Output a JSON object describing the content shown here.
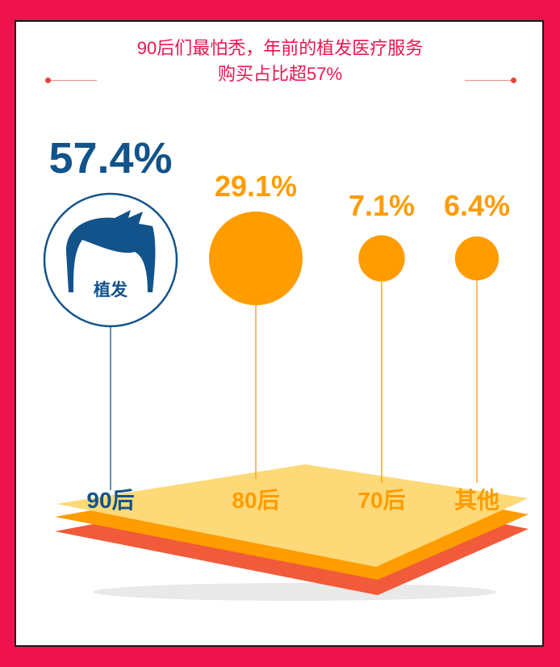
{
  "title_line1": "90后们最怕秃，年前的植发医疗服务",
  "title_line2": "购买占比超57%",
  "icon_label": "植发",
  "colors": {
    "border": "#f0124c",
    "title": "#e8174f",
    "primary": "#12538b",
    "accent": "#ff9c00",
    "layer_top": "#fdd978",
    "layer_mid": "#ff9c00",
    "layer_bottom": "#f15a3a"
  },
  "icon": "hair-icon",
  "chart_data": {
    "type": "bubble",
    "categories": [
      "90后",
      "80后",
      "70后",
      "其他"
    ],
    "values": [
      57.4,
      29.1,
      7.1,
      6.4
    ],
    "value_labels": [
      "57.4%",
      "29.1%",
      "7.1%",
      "6.4%"
    ],
    "unit": "%"
  }
}
